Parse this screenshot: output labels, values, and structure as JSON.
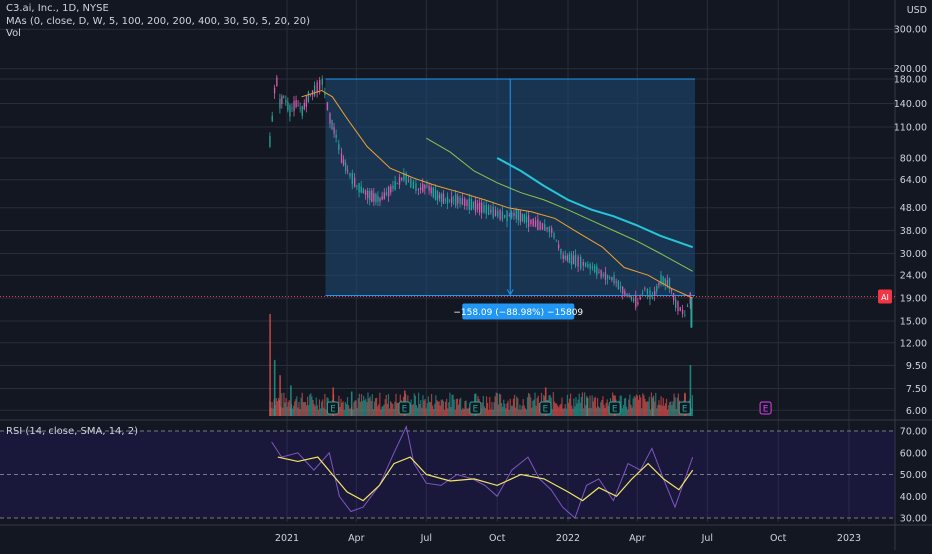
{
  "header": {
    "symbol": "C3.ai, Inc., 1D, NYSE",
    "ma_indicator": "MAs (0, close, D, W, 5, 100, 200, 200, 400, 30, 50, 5, 20, 20)",
    "vol_indicator": "Vol",
    "rsi_indicator": "RSI (14, close, SMA, 14, 2)"
  },
  "colors": {
    "background": "#131722",
    "grid": "#2a2e39",
    "text": "#d1d4dc",
    "candle_up": "#26a69a",
    "candle_down": "#ef5350",
    "candle_magenta": "#d65bb0",
    "ma_orange": "#f0a030",
    "ma_green": "#8bc34a",
    "ma_cyan": "#26c6da",
    "measure_fill": "#1e4d78",
    "measure_line": "#2196f3",
    "rsi_line": "#7e57c2",
    "rsi_signal": "#f5e663",
    "rsi_band": "#311b92",
    "price_badge": "#f23645",
    "earnings_marker": "#26a69a",
    "future_earnings": "#e040fb"
  },
  "price_axis": {
    "label": "USD",
    "ticks": [
      "300.00",
      "200.00",
      "180.00",
      "140.00",
      "110.00",
      "80.00",
      "64.00",
      "48.00",
      "38.00",
      "30.00",
      "24.00",
      "19.00",
      "15.00",
      "12.00",
      "9.50",
      "7.50",
      "6.00"
    ],
    "current_price_badge": "AI"
  },
  "rsi_axis": {
    "ticks": [
      "70.00",
      "60.00",
      "50.00",
      "40.00",
      "30.00"
    ]
  },
  "time_axis": {
    "ticks": [
      "2021",
      "Apr",
      "Jul",
      "Oct",
      "2022",
      "Apr",
      "Jul",
      "Oct",
      "2023"
    ]
  },
  "measure": {
    "label": "−158.09 (−88.98%) −15809"
  },
  "earnings": {
    "marker": "E"
  },
  "chart_data": [
    {
      "type": "line",
      "scale": "log",
      "x_axis": "dates",
      "x_range": [
        "2020-11-01",
        "2023-03-01"
      ],
      "ylim": [
        5.5,
        330
      ],
      "series": [
        {
          "role": "price",
          "x": [
            "2020-12-09",
            "2020-12-12",
            "2020-12-15",
            "2020-12-18",
            "2020-12-22",
            "2020-12-27",
            "2021-01-04",
            "2021-01-12",
            "2021-01-20",
            "2021-01-28",
            "2021-02-05",
            "2021-02-15",
            "2021-02-25",
            "2021-03-05",
            "2021-03-12",
            "2021-03-20",
            "2021-04-01",
            "2021-04-15",
            "2021-05-01",
            "2021-05-15",
            "2021-06-01",
            "2021-06-10",
            "2021-06-20",
            "2021-07-01",
            "2021-07-12",
            "2021-07-25",
            "2021-08-10",
            "2021-08-25",
            "2021-09-10",
            "2021-09-25",
            "2021-10-10",
            "2021-10-25",
            "2021-11-10",
            "2021-11-25",
            "2021-12-10",
            "2021-12-25",
            "2022-01-10",
            "2022-01-20",
            "2022-02-01",
            "2022-02-15",
            "2022-03-01",
            "2022-03-15",
            "2022-04-01",
            "2022-04-10",
            "2022-04-20",
            "2022-05-01",
            "2022-05-12",
            "2022-05-20",
            "2022-06-01",
            "2022-06-08",
            "2022-06-12"
          ],
          "values": [
            95,
            120,
            160,
            175,
            140,
            150,
            130,
            140,
            130,
            150,
            160,
            175,
            120,
            100,
            80,
            70,
            60,
            55,
            52,
            58,
            66,
            62,
            58,
            60,
            55,
            52,
            52,
            50,
            48,
            46,
            44,
            45,
            42,
            40,
            38,
            29,
            28,
            27,
            26,
            24,
            23,
            20,
            18,
            21,
            19,
            23,
            22,
            18,
            16,
            19,
            20
          ]
        },
        {
          "role": "ma",
          "color": "ma_orange",
          "x": [
            "2021-01-20",
            "2021-02-15",
            "2021-03-01",
            "2021-03-20",
            "2021-04-15",
            "2021-05-15",
            "2021-06-15",
            "2021-07-15",
            "2021-08-15",
            "2021-09-15",
            "2021-10-15",
            "2021-11-15",
            "2021-12-15",
            "2022-01-15",
            "2022-02-15",
            "2022-03-15",
            "2022-04-15",
            "2022-05-15",
            "2022-06-12"
          ],
          "values": [
            150,
            160,
            150,
            120,
            90,
            72,
            65,
            60,
            56,
            52,
            48,
            46,
            43,
            37,
            32,
            26,
            24,
            21,
            19
          ]
        },
        {
          "role": "ma",
          "color": "ma_green",
          "x": [
            "2021-07-01",
            "2021-08-01",
            "2021-09-01",
            "2021-10-01",
            "2021-11-01",
            "2021-12-01",
            "2022-01-01",
            "2022-02-01",
            "2022-03-01",
            "2022-04-01",
            "2022-05-01",
            "2022-06-12"
          ],
          "values": [
            98,
            85,
            70,
            62,
            56,
            52,
            47,
            42,
            38,
            34,
            30,
            25
          ]
        },
        {
          "role": "ma",
          "color": "ma_cyan",
          "x": [
            "2021-10-01",
            "2021-11-01",
            "2021-12-01",
            "2022-01-01",
            "2022-02-01",
            "2022-03-01",
            "2022-04-01",
            "2022-05-01",
            "2022-06-12"
          ],
          "values": [
            80,
            70,
            60,
            52,
            47,
            44,
            40,
            36,
            32
          ]
        }
      ]
    },
    {
      "type": "bar",
      "role": "volume",
      "x": [
        "2020-12-09",
        "2020-12-15",
        "2020-12-22",
        "2021-01-05",
        "2021-03-01",
        "2021-03-25",
        "2021-06-02",
        "2021-09-02",
        "2021-12-02",
        "2022-01-25",
        "2022-03-02",
        "2022-04-20",
        "2022-06-01",
        "2022-06-08"
      ],
      "values": [
        100,
        55,
        40,
        30,
        28,
        24,
        25,
        22,
        28,
        18,
        20,
        18,
        22,
        50
      ]
    },
    {
      "type": "line",
      "role": "rsi",
      "ylim": [
        28,
        72
      ],
      "x": [
        "2020-12-12",
        "2020-12-25",
        "2021-01-15",
        "2021-02-05",
        "2021-02-25",
        "2021-03-10",
        "2021-03-25",
        "2021-04-10",
        "2021-05-01",
        "2021-05-20",
        "2021-06-05",
        "2021-06-15",
        "2021-07-01",
        "2021-07-20",
        "2021-08-10",
        "2021-08-30",
        "2021-09-15",
        "2021-10-01",
        "2021-10-20",
        "2021-11-10",
        "2021-11-25",
        "2021-12-10",
        "2021-12-25",
        "2022-01-10",
        "2022-01-25",
        "2022-02-10",
        "2022-03-01",
        "2022-03-20",
        "2022-04-05",
        "2022-04-20",
        "2022-05-05",
        "2022-05-20",
        "2022-06-01",
        "2022-06-12"
      ],
      "values": [
        65,
        58,
        60,
        52,
        60,
        40,
        33,
        35,
        45,
        60,
        72,
        55,
        46,
        45,
        50,
        48,
        45,
        40,
        52,
        58,
        48,
        43,
        35,
        30,
        45,
        48,
        38,
        55,
        52,
        62,
        48,
        35,
        47,
        58
      ],
      "signal_x": [
        "2020-12-20",
        "2021-01-15",
        "2021-02-10",
        "2021-03-01",
        "2021-03-20",
        "2021-04-10",
        "2021-05-01",
        "2021-05-20",
        "2021-06-10",
        "2021-07-01",
        "2021-08-01",
        "2021-09-01",
        "2021-10-01",
        "2021-11-01",
        "2021-12-01",
        "2022-01-01",
        "2022-01-20",
        "2022-02-10",
        "2022-03-05",
        "2022-03-25",
        "2022-04-15",
        "2022-05-05",
        "2022-05-25",
        "2022-06-12"
      ],
      "signal_values": [
        58,
        56,
        58,
        50,
        42,
        38,
        45,
        55,
        58,
        50,
        47,
        48,
        45,
        50,
        48,
        42,
        38,
        44,
        40,
        48,
        55,
        48,
        43,
        52
      ],
      "levels": [
        70,
        50,
        30
      ]
    }
  ]
}
